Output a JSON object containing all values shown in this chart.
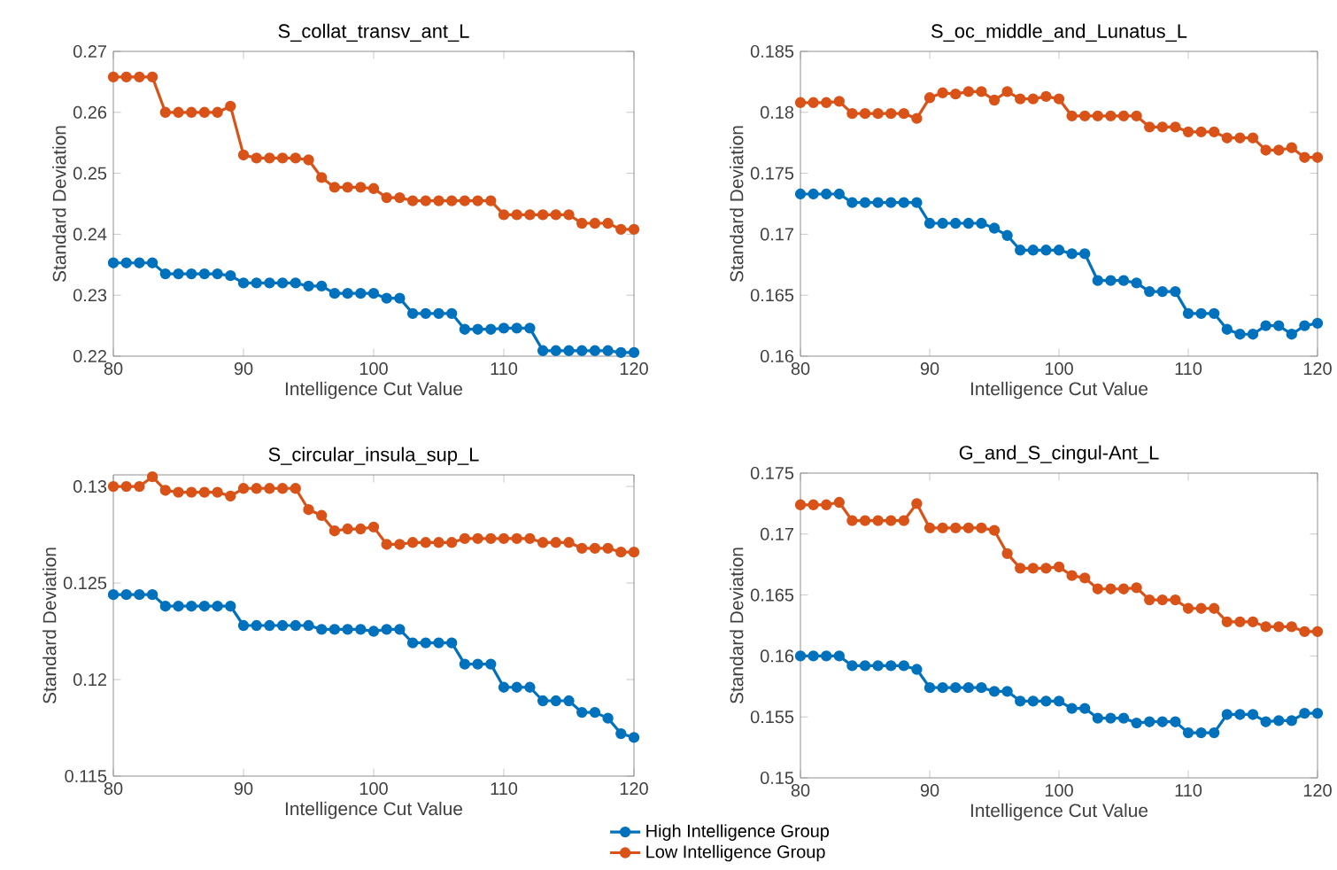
{
  "chart_data": [
    {
      "type": "line",
      "title": "S_collat_transv_ant_L",
      "xlabel": "Intelligence Cut Value",
      "ylabel": "Standard Deviation",
      "marker": "circle",
      "x": [
        80,
        81,
        82,
        83,
        84,
        85,
        86,
        87,
        88,
        89,
        90,
        91,
        92,
        93,
        94,
        95,
        96,
        97,
        98,
        99,
        100,
        101,
        102,
        103,
        104,
        105,
        106,
        107,
        108,
        109,
        110,
        111,
        112,
        113,
        114,
        115,
        116,
        117,
        118,
        119,
        120
      ],
      "xlim": [
        80,
        120
      ],
      "xticks": [
        80,
        90,
        100,
        110,
        120
      ],
      "ylim": [
        0.22,
        0.27
      ],
      "yticks": [
        0.22,
        0.23,
        0.24,
        0.25,
        0.26,
        0.27
      ],
      "series": [
        {
          "color": "#0072bd",
          "values": [
            0.2353,
            0.2353,
            0.2353,
            0.2353,
            0.2335,
            0.2335,
            0.2335,
            0.2335,
            0.2335,
            0.2332,
            0.232,
            0.232,
            0.232,
            0.232,
            0.232,
            0.2315,
            0.2315,
            0.2303,
            0.2303,
            0.2303,
            0.2303,
            0.2295,
            0.2295,
            0.227,
            0.227,
            0.227,
            0.227,
            0.2244,
            0.2244,
            0.2244,
            0.2246,
            0.2246,
            0.2246,
            0.2209,
            0.2209,
            0.2209,
            0.2209,
            0.2209,
            0.2209,
            0.2206,
            0.2206
          ]
        },
        {
          "color": "#d95319",
          "values": [
            0.2658,
            0.2658,
            0.2658,
            0.2658,
            0.26,
            0.26,
            0.26,
            0.26,
            0.26,
            0.261,
            0.253,
            0.2525,
            0.2525,
            0.2525,
            0.2525,
            0.2522,
            0.2493,
            0.2477,
            0.2477,
            0.2477,
            0.2475,
            0.246,
            0.246,
            0.2455,
            0.2455,
            0.2455,
            0.2455,
            0.2455,
            0.2455,
            0.2455,
            0.2432,
            0.2432,
            0.2432,
            0.2432,
            0.2432,
            0.2432,
            0.2418,
            0.2418,
            0.2418,
            0.2408,
            0.2408
          ]
        }
      ]
    },
    {
      "type": "line",
      "title": "S_oc_middle_and_Lunatus_L",
      "xlabel": "Intelligence Cut Value",
      "ylabel": "Standard Deviation",
      "marker": "circle",
      "x": [
        80,
        81,
        82,
        83,
        84,
        85,
        86,
        87,
        88,
        89,
        90,
        91,
        92,
        93,
        94,
        95,
        96,
        97,
        98,
        99,
        100,
        101,
        102,
        103,
        104,
        105,
        106,
        107,
        108,
        109,
        110,
        111,
        112,
        113,
        114,
        115,
        116,
        117,
        118,
        119,
        120
      ],
      "xlim": [
        80,
        120
      ],
      "xticks": [
        80,
        90,
        100,
        110,
        120
      ],
      "ylim": [
        0.16,
        0.185
      ],
      "yticks": [
        0.16,
        0.165,
        0.17,
        0.175,
        0.18,
        0.185
      ],
      "series": [
        {
          "color": "#0072bd",
          "values": [
            0.1733,
            0.1733,
            0.1733,
            0.1733,
            0.1726,
            0.1726,
            0.1726,
            0.1726,
            0.1726,
            0.1726,
            0.1709,
            0.1709,
            0.1709,
            0.1709,
            0.1709,
            0.1705,
            0.1699,
            0.1687,
            0.1687,
            0.1687,
            0.1687,
            0.1684,
            0.1684,
            0.1662,
            0.1662,
            0.1662,
            0.166,
            0.1653,
            0.1653,
            0.1653,
            0.1635,
            0.1635,
            0.1635,
            0.1622,
            0.1618,
            0.1618,
            0.1625,
            0.1625,
            0.1618,
            0.1625,
            0.1627
          ]
        },
        {
          "color": "#d95319",
          "values": [
            0.1808,
            0.1808,
            0.1808,
            0.1809,
            0.1799,
            0.1799,
            0.1799,
            0.1799,
            0.1799,
            0.1795,
            0.1812,
            0.1816,
            0.1815,
            0.1817,
            0.1817,
            0.181,
            0.1817,
            0.1811,
            0.1811,
            0.1813,
            0.1811,
            0.1797,
            0.1797,
            0.1797,
            0.1797,
            0.1797,
            0.1797,
            0.1788,
            0.1788,
            0.1788,
            0.1784,
            0.1784,
            0.1784,
            0.1779,
            0.1779,
            0.1779,
            0.1769,
            0.1769,
            0.1771,
            0.1763,
            0.1763
          ]
        }
      ]
    },
    {
      "type": "line",
      "title": "S_circular_insula_sup_L",
      "xlabel": "Intelligence Cut Value",
      "ylabel": "Standard Deviation",
      "marker": "circle",
      "legend": "bottom",
      "x": [
        80,
        81,
        82,
        83,
        84,
        85,
        86,
        87,
        88,
        89,
        90,
        91,
        92,
        93,
        94,
        95,
        96,
        97,
        98,
        99,
        100,
        101,
        102,
        103,
        104,
        105,
        106,
        107,
        108,
        109,
        110,
        111,
        112,
        113,
        114,
        115,
        116,
        117,
        118,
        119,
        120
      ],
      "xlim": [
        80,
        120
      ],
      "xticks": [
        80,
        90,
        100,
        110,
        120
      ],
      "ylim": [
        0.115,
        0.1306
      ],
      "yticks": [
        0.115,
        0.12,
        0.125,
        0.13
      ],
      "series": [
        {
          "name": "High Intelligence Group",
          "color": "#0072bd",
          "values": [
            0.1244,
            0.1244,
            0.1244,
            0.1244,
            0.1238,
            0.1238,
            0.1238,
            0.1238,
            0.1238,
            0.1238,
            0.1228,
            0.1228,
            0.1228,
            0.1228,
            0.1228,
            0.1228,
            0.1226,
            0.1226,
            0.1226,
            0.1226,
            0.1225,
            0.1226,
            0.1226,
            0.1219,
            0.1219,
            0.1219,
            0.1219,
            0.1208,
            0.1208,
            0.1208,
            0.1196,
            0.1196,
            0.1196,
            0.1189,
            0.1189,
            0.1189,
            0.1183,
            0.1183,
            0.118,
            0.1172,
            0.117
          ]
        },
        {
          "name": "Low Intelligence Group",
          "color": "#d95319",
          "values": [
            0.13,
            0.13,
            0.13,
            0.1305,
            0.1298,
            0.1297,
            0.1297,
            0.1297,
            0.1297,
            0.1295,
            0.1299,
            0.1299,
            0.1299,
            0.1299,
            0.1299,
            0.1288,
            0.1285,
            0.1277,
            0.1278,
            0.1278,
            0.1279,
            0.127,
            0.127,
            0.1271,
            0.1271,
            0.1271,
            0.1271,
            0.1273,
            0.1273,
            0.1273,
            0.1273,
            0.1273,
            0.1273,
            0.1271,
            0.1271,
            0.1271,
            0.1268,
            0.1268,
            0.1268,
            0.1266,
            0.1266
          ]
        }
      ]
    },
    {
      "type": "line",
      "title": "G_and_S_cingul-Ant_L",
      "xlabel": "Intelligence Cut Value",
      "ylabel": "Standard Deviation",
      "marker": "circle",
      "x": [
        80,
        81,
        82,
        83,
        84,
        85,
        86,
        87,
        88,
        89,
        90,
        91,
        92,
        93,
        94,
        95,
        96,
        97,
        98,
        99,
        100,
        101,
        102,
        103,
        104,
        105,
        106,
        107,
        108,
        109,
        110,
        111,
        112,
        113,
        114,
        115,
        116,
        117,
        118,
        119,
        120
      ],
      "xlim": [
        80,
        120
      ],
      "xticks": [
        80,
        90,
        100,
        110,
        120
      ],
      "ylim": [
        0.15,
        0.175
      ],
      "yticks": [
        0.15,
        0.155,
        0.16,
        0.165,
        0.17,
        0.175
      ],
      "series": [
        {
          "color": "#0072bd",
          "values": [
            0.16,
            0.16,
            0.16,
            0.16,
            0.1592,
            0.1592,
            0.1592,
            0.1592,
            0.1592,
            0.1589,
            0.1574,
            0.1574,
            0.1574,
            0.1574,
            0.1574,
            0.1571,
            0.1571,
            0.1563,
            0.1563,
            0.1563,
            0.1563,
            0.1557,
            0.1557,
            0.1549,
            0.1549,
            0.1549,
            0.1545,
            0.1546,
            0.1546,
            0.1546,
            0.1537,
            0.1537,
            0.1537,
            0.1552,
            0.1552,
            0.1552,
            0.1546,
            0.1547,
            0.1547,
            0.1553,
            0.1553
          ]
        },
        {
          "color": "#d95319",
          "values": [
            0.1724,
            0.1724,
            0.1724,
            0.1726,
            0.1711,
            0.1711,
            0.1711,
            0.1711,
            0.1711,
            0.1725,
            0.1705,
            0.1705,
            0.1705,
            0.1705,
            0.1705,
            0.1703,
            0.1684,
            0.1672,
            0.1672,
            0.1672,
            0.1673,
            0.1666,
            0.1664,
            0.1655,
            0.1655,
            0.1655,
            0.1656,
            0.1646,
            0.1646,
            0.1646,
            0.1639,
            0.1639,
            0.1639,
            0.1628,
            0.1628,
            0.1628,
            0.1624,
            0.1624,
            0.1624,
            0.162,
            0.162
          ]
        }
      ]
    }
  ]
}
